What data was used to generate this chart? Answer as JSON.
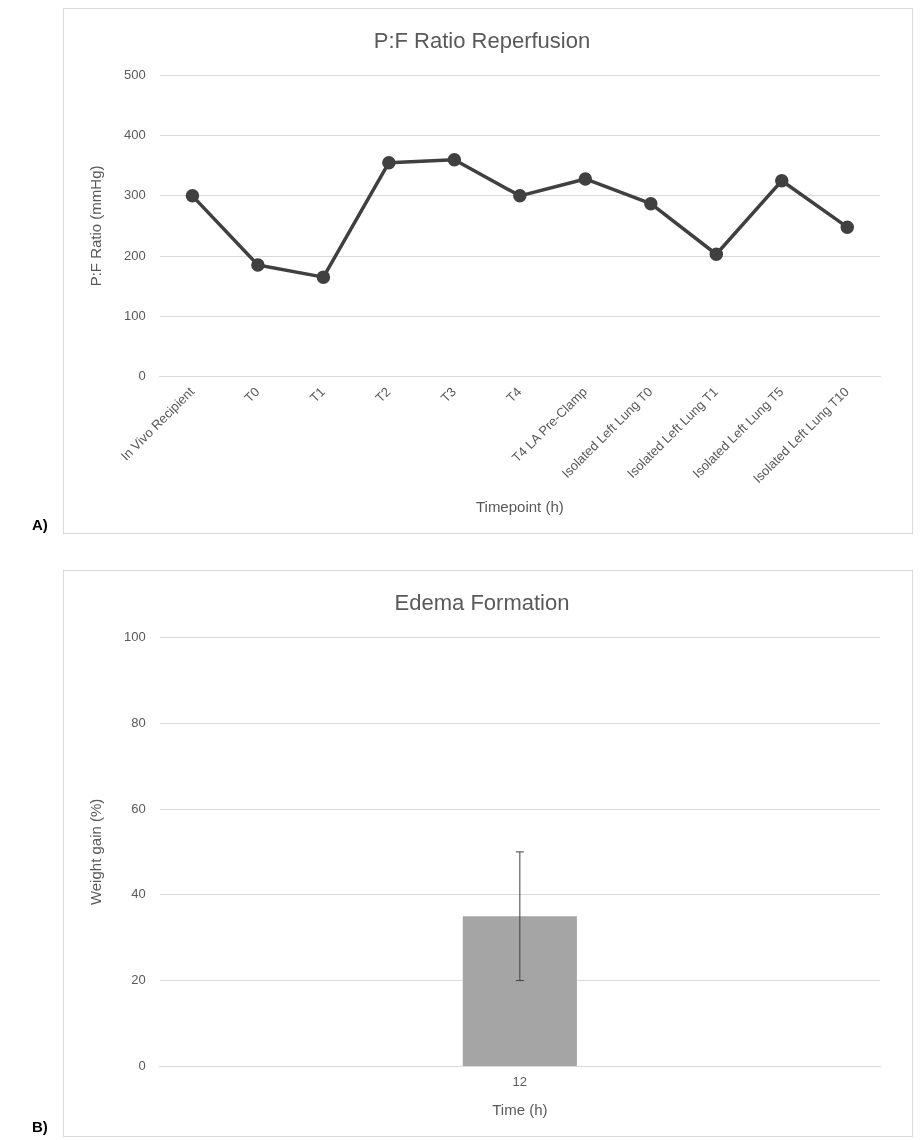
{
  "chart_data": [
    {
      "type": "line",
      "title": "P:F Ratio Reperfusion",
      "xlabel": "Timepoint (h)",
      "ylabel": "P:F Ratio (mmHg)",
      "annotations": [
        "A)"
      ],
      "categories": [
        "In Vivo Recipient",
        "T0",
        "T1",
        "T2",
        "T3",
        "T4",
        "T4 LA Pre-Clamp",
        "Isolated Left Lung T0",
        "Isolated Left Lung T1",
        "Isolated Left Lung T5",
        "Isolated Left Lung T10"
      ],
      "series": [
        {
          "color": "#404040",
          "values": [
            300,
            185,
            165,
            355,
            360,
            300,
            328,
            287,
            203,
            325,
            248
          ]
        }
      ],
      "ylim": [
        0,
        500
      ],
      "yticks": [
        0,
        100,
        200,
        300,
        400,
        500
      ],
      "grid": "y",
      "marker": "circle",
      "line_style": "solid"
    },
    {
      "type": "bar",
      "title": "Edema Formation",
      "xlabel": "Time (h)",
      "ylabel": "Weight gain (%)",
      "annotations": [
        "B)"
      ],
      "categories": [
        "12"
      ],
      "series": [
        {
          "color": "#a5a5a5",
          "values": [
            35
          ],
          "errors": [
            15
          ]
        }
      ],
      "ylim": [
        0,
        100
      ],
      "yticks": [
        0,
        20,
        40,
        60,
        80,
        100
      ],
      "grid": "y"
    }
  ]
}
